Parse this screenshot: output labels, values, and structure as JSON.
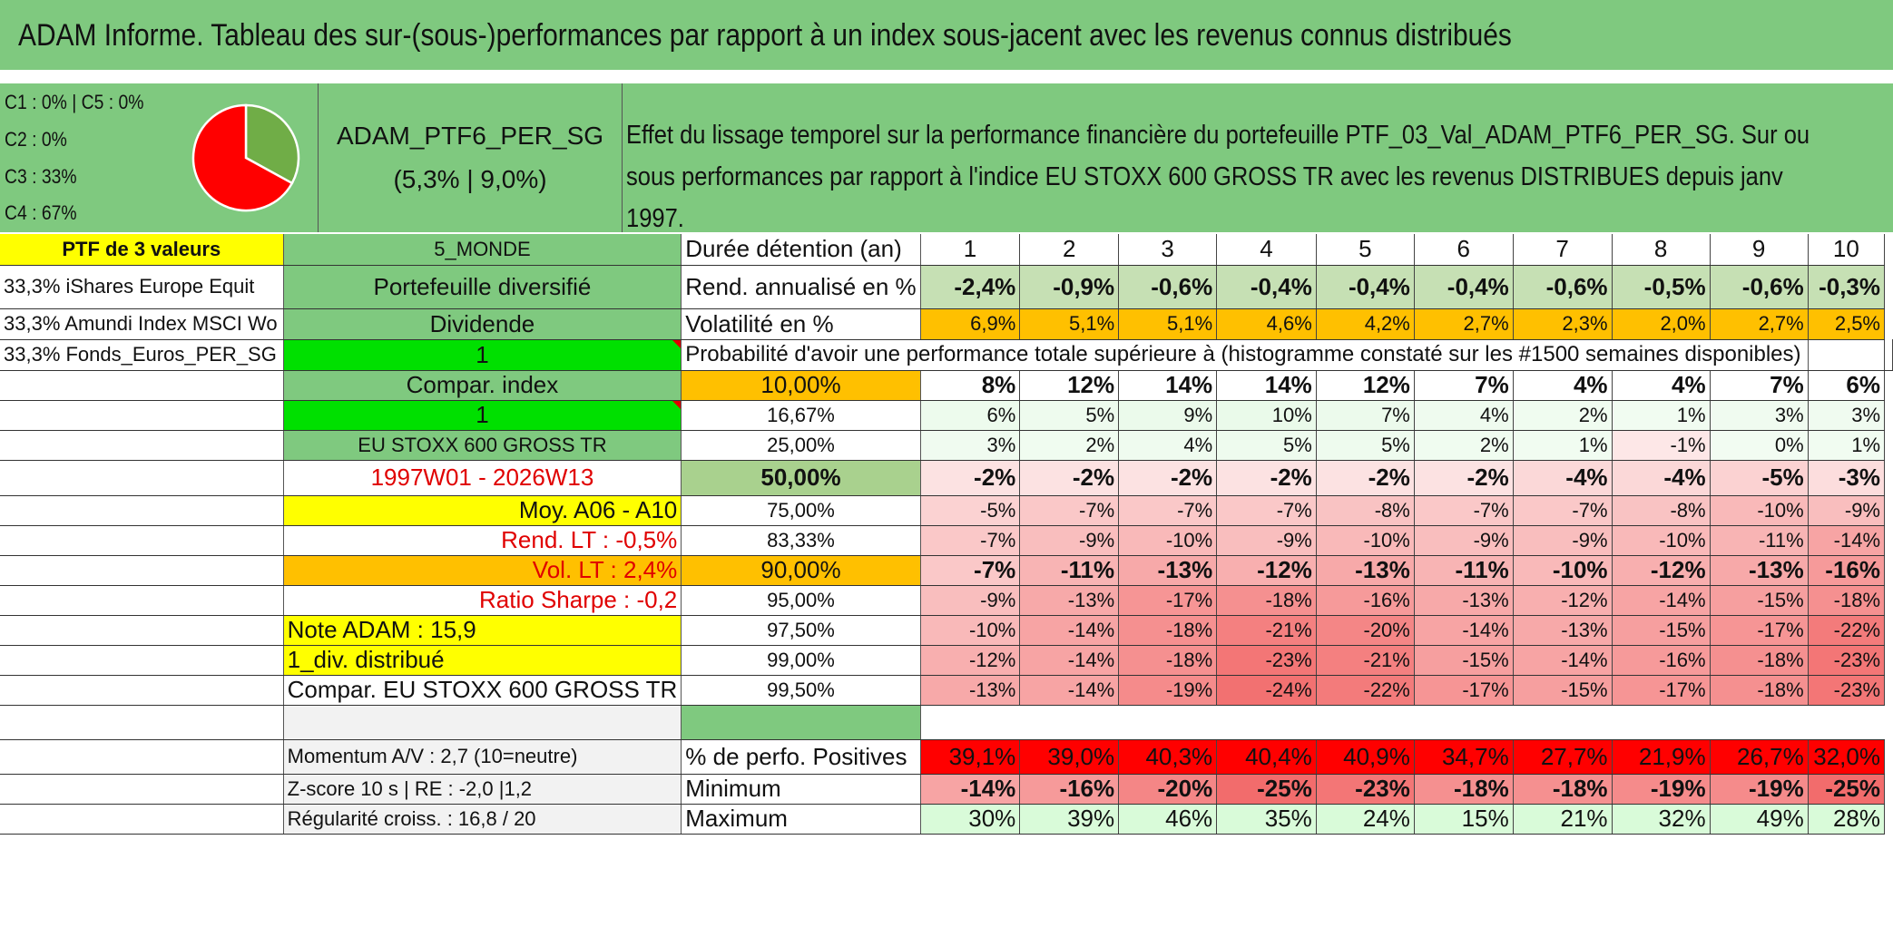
{
  "title": "ADAM Informe. Tableau des sur-(sous-)performances par rapport à un index sous-jacent avec les revenus connus distribués",
  "pie": {
    "legend": [
      "C1 : 0% | C5 : 0%",
      "C2 : 0%",
      "C3 : 33%",
      "C4 : 67%"
    ],
    "slices": [
      {
        "label": "C3",
        "pct": 33,
        "color": "#70ad47"
      },
      {
        "label": "C4",
        "pct": 67,
        "color": "#ff0000"
      }
    ]
  },
  "portfolio": {
    "name": "ADAM_PTF6_PER_SG",
    "stats": "(5,3% | 9,0%)"
  },
  "description": "Effet du lissage temporel sur la performance financière du portefeuille PTF_03_Val_ADAM_PTF6_PER_SG. Sur ou sous performances par rapport à l'indice EU STOXX 600 GROSS TR avec les revenus DISTRIBUES depuis janv 1997.",
  "header_row": {
    "c0": "PTF de 3 valeurs",
    "c1": "5_MONDE",
    "c2": "Durée détention (an)",
    "years": [
      "1",
      "2",
      "3",
      "4",
      "5",
      "6",
      "7",
      "8",
      "9",
      "10"
    ]
  },
  "rend_row": {
    "c0": "33,3% iShares Europe Equit",
    "c1": "Portefeuille diversifié",
    "c2": "Rend. annualisé en %",
    "values": [
      "-2,4%",
      "-0,9%",
      "-0,6%",
      "-0,4%",
      "-0,4%",
      "-0,4%",
      "-0,6%",
      "-0,5%",
      "-0,6%",
      "-0,3%"
    ]
  },
  "vol_row": {
    "c0": "33,3% Amundi Index MSCI Wo",
    "c1": "Dividende",
    "c2": "Volatilité en %",
    "values": [
      "6,9%",
      "5,1%",
      "5,1%",
      "4,6%",
      "4,2%",
      "2,7%",
      "2,3%",
      "2,0%",
      "2,7%",
      "2,5%"
    ]
  },
  "prob_row": {
    "c0": "33,3% Fonds_Euros_PER_SG",
    "c1": "1",
    "text": "Probabilité d'avoir une performance totale supérieure à (histogramme constaté sur les #1500 semaines disponibles)"
  },
  "quantile_rows": [
    {
      "c0": "",
      "c1": "Compar. index",
      "q": "10,00%",
      "values": [
        "8%",
        "12%",
        "14%",
        "14%",
        "12%",
        "7%",
        "4%",
        "4%",
        "7%",
        "6%"
      ]
    },
    {
      "c0": "",
      "c1": "1",
      "q": "16,67%",
      "values": [
        "6%",
        "5%",
        "9%",
        "10%",
        "7%",
        "4%",
        "2%",
        "1%",
        "3%",
        "3%"
      ]
    },
    {
      "c0": "",
      "c1": "EU STOXX 600 GROSS TR",
      "q": "25,00%",
      "values": [
        "3%",
        "2%",
        "4%",
        "5%",
        "5%",
        "2%",
        "1%",
        "-1%",
        "0%",
        "1%"
      ]
    },
    {
      "c0": "",
      "c1": "1997W01 - 2026W13",
      "q": "50,00%",
      "values": [
        "-2%",
        "-2%",
        "-2%",
        "-2%",
        "-2%",
        "-2%",
        "-4%",
        "-4%",
        "-5%",
        "-3%"
      ]
    },
    {
      "c0": "",
      "c1": "Moy. A06 - A10",
      "q": "75,00%",
      "values": [
        "-5%",
        "-7%",
        "-7%",
        "-7%",
        "-8%",
        "-7%",
        "-7%",
        "-8%",
        "-10%",
        "-9%"
      ]
    },
    {
      "c0": "",
      "c1": "Rend. LT : -0,5%",
      "q": "83,33%",
      "values": [
        "-7%",
        "-9%",
        "-10%",
        "-9%",
        "-10%",
        "-9%",
        "-9%",
        "-10%",
        "-11%",
        "-14%"
      ]
    },
    {
      "c0": "",
      "c1": "Vol. LT : 2,4%",
      "q": "90,00%",
      "values": [
        "-7%",
        "-11%",
        "-13%",
        "-12%",
        "-13%",
        "-11%",
        "-10%",
        "-12%",
        "-13%",
        "-16%"
      ]
    },
    {
      "c0": "",
      "c1": "Ratio Sharpe : -0,2",
      "q": "95,00%",
      "values": [
        "-9%",
        "-13%",
        "-17%",
        "-18%",
        "-16%",
        "-13%",
        "-12%",
        "-14%",
        "-15%",
        "-18%"
      ]
    },
    {
      "c0": "",
      "c1": "Note ADAM : 15,9",
      "q": "97,50%",
      "values": [
        "-10%",
        "-14%",
        "-18%",
        "-21%",
        "-20%",
        "-14%",
        "-13%",
        "-15%",
        "-17%",
        "-22%"
      ]
    },
    {
      "c0": "",
      "c1": "1_div. distribué",
      "q": "99,00%",
      "values": [
        "-12%",
        "-14%",
        "-18%",
        "-23%",
        "-21%",
        "-15%",
        "-14%",
        "-16%",
        "-18%",
        "-23%"
      ]
    },
    {
      "c0": "",
      "c1": "Compar. EU STOXX 600 GROSS TR",
      "q": "99,50%",
      "values": [
        "-13%",
        "-14%",
        "-19%",
        "-24%",
        "-22%",
        "-17%",
        "-15%",
        "-17%",
        "-18%",
        "-23%"
      ]
    }
  ],
  "stats_rows": [
    {
      "c1": "Momentum A/V : 2,7 (10=neutre)",
      "c2": "% de perfo. Positives",
      "values": [
        "39,1%",
        "39,0%",
        "40,3%",
        "40,4%",
        "40,9%",
        "34,7%",
        "27,7%",
        "21,9%",
        "26,7%",
        "32,0%"
      ]
    },
    {
      "c1": "Z-score 10 s | RE : -2,0 |1,2",
      "c2": "Minimum",
      "values": [
        "-14%",
        "-16%",
        "-20%",
        "-25%",
        "-23%",
        "-18%",
        "-18%",
        "-19%",
        "-19%",
        "-25%"
      ]
    },
    {
      "c1": "Régularité croiss. : 16,8 / 20",
      "c2": "Maximum",
      "values": [
        "30%",
        "39%",
        "46%",
        "35%",
        "24%",
        "15%",
        "21%",
        "32%",
        "49%",
        "28%"
      ]
    }
  ]
}
